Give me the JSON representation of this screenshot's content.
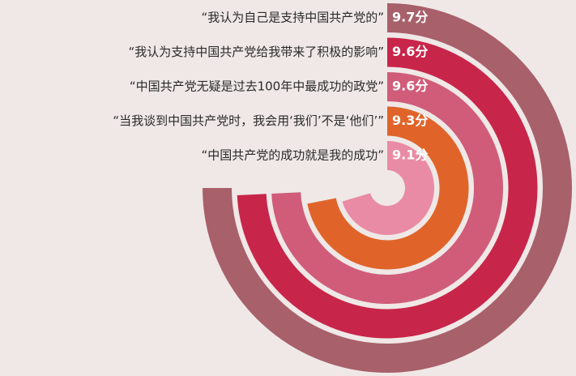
{
  "chart_data": {
    "type": "radial_bar",
    "categories": [
      "“我认为自己是支持中国共产党的”",
      "“我认为支持中国共产党给我带来了积极的影响”",
      "“中国共产党无疑是过去100年中最成功的政党”",
      "“当我谈到中国共产党时，我会用‘我们’不是‘他们’”",
      "“中国共产党的成功就是我的成功”"
    ],
    "values": [
      9.7,
      9.6,
      9.6,
      9.3,
      9.1
    ],
    "value_labels": [
      "9.7分",
      "9.6分",
      "9.6分",
      "9.3分",
      "9.1分"
    ],
    "colors": [
      "#a8606b",
      "#c8254a",
      "#d05c79",
      "#e0642a",
      "#e98ba4"
    ]
  }
}
